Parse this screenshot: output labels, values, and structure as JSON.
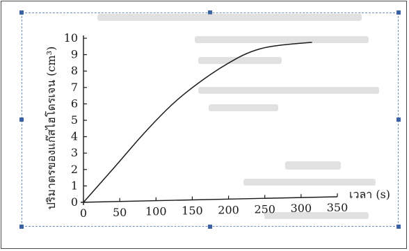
{
  "chart_data": {
    "type": "line",
    "title": "",
    "xlabel": "เวลา (s)",
    "ylabel": "ปริมาตรของแก๊สไฮโดรเจน (cm³)",
    "xlim": [
      0,
      350
    ],
    "ylim": [
      0,
      10
    ],
    "x_ticks": [
      "0",
      "50",
      "100",
      "150",
      "200",
      "250",
      "300",
      "350"
    ],
    "y_ticks": [
      "0",
      "1",
      "2",
      "3",
      "4",
      "5",
      "6",
      "7",
      "8",
      "9",
      "10"
    ],
    "grid": false,
    "series": [
      {
        "x": [
          0,
          25,
          50,
          75,
          100,
          125,
          150,
          175,
          200,
          225,
          250,
          275,
          300,
          315
        ],
        "y": [
          0,
          1.25,
          2.5,
          3.8,
          5.0,
          6.1,
          7.0,
          7.8,
          8.5,
          9.1,
          9.45,
          9.6,
          9.7,
          9.75
        ]
      }
    ],
    "colors": {
      "line": "#1a1a1a",
      "axis": "#1a1a1a"
    }
  },
  "frame": {
    "border_color": "#4a4a4a",
    "selection_color": "#3c62a6"
  }
}
